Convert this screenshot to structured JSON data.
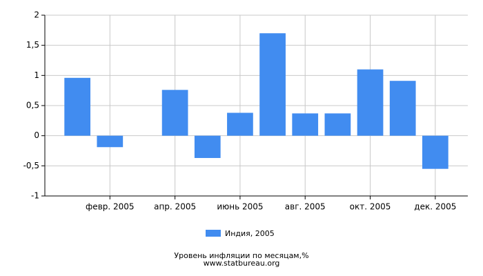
{
  "chart_data": {
    "type": "bar",
    "title": "Уровень инфляции по месяцам,%",
    "subtitle": "www.statbureau.org",
    "categories": [
      null,
      "февр. 2005",
      null,
      "апр. 2005",
      null,
      "июнь 2005",
      null,
      "авг. 2005",
      null,
      "окт. 2005",
      null,
      "дек. 2005"
    ],
    "series": [
      {
        "name": "Индия, 2005",
        "color": "#418cf0",
        "values": [
          0.96,
          -0.19,
          0,
          0.76,
          -0.37,
          0.38,
          1.7,
          0.37,
          0.37,
          1.1,
          0.91,
          -0.55
        ]
      }
    ],
    "ylim": [
      -1,
      2
    ],
    "yticks": [
      -1,
      {
        "value": -0.5,
        "label": "-0,5"
      },
      0,
      {
        "value": 0.5,
        "label": "0,5"
      },
      1,
      {
        "value": 1.5,
        "label": "1,5"
      },
      2
    ],
    "grid": true
  }
}
